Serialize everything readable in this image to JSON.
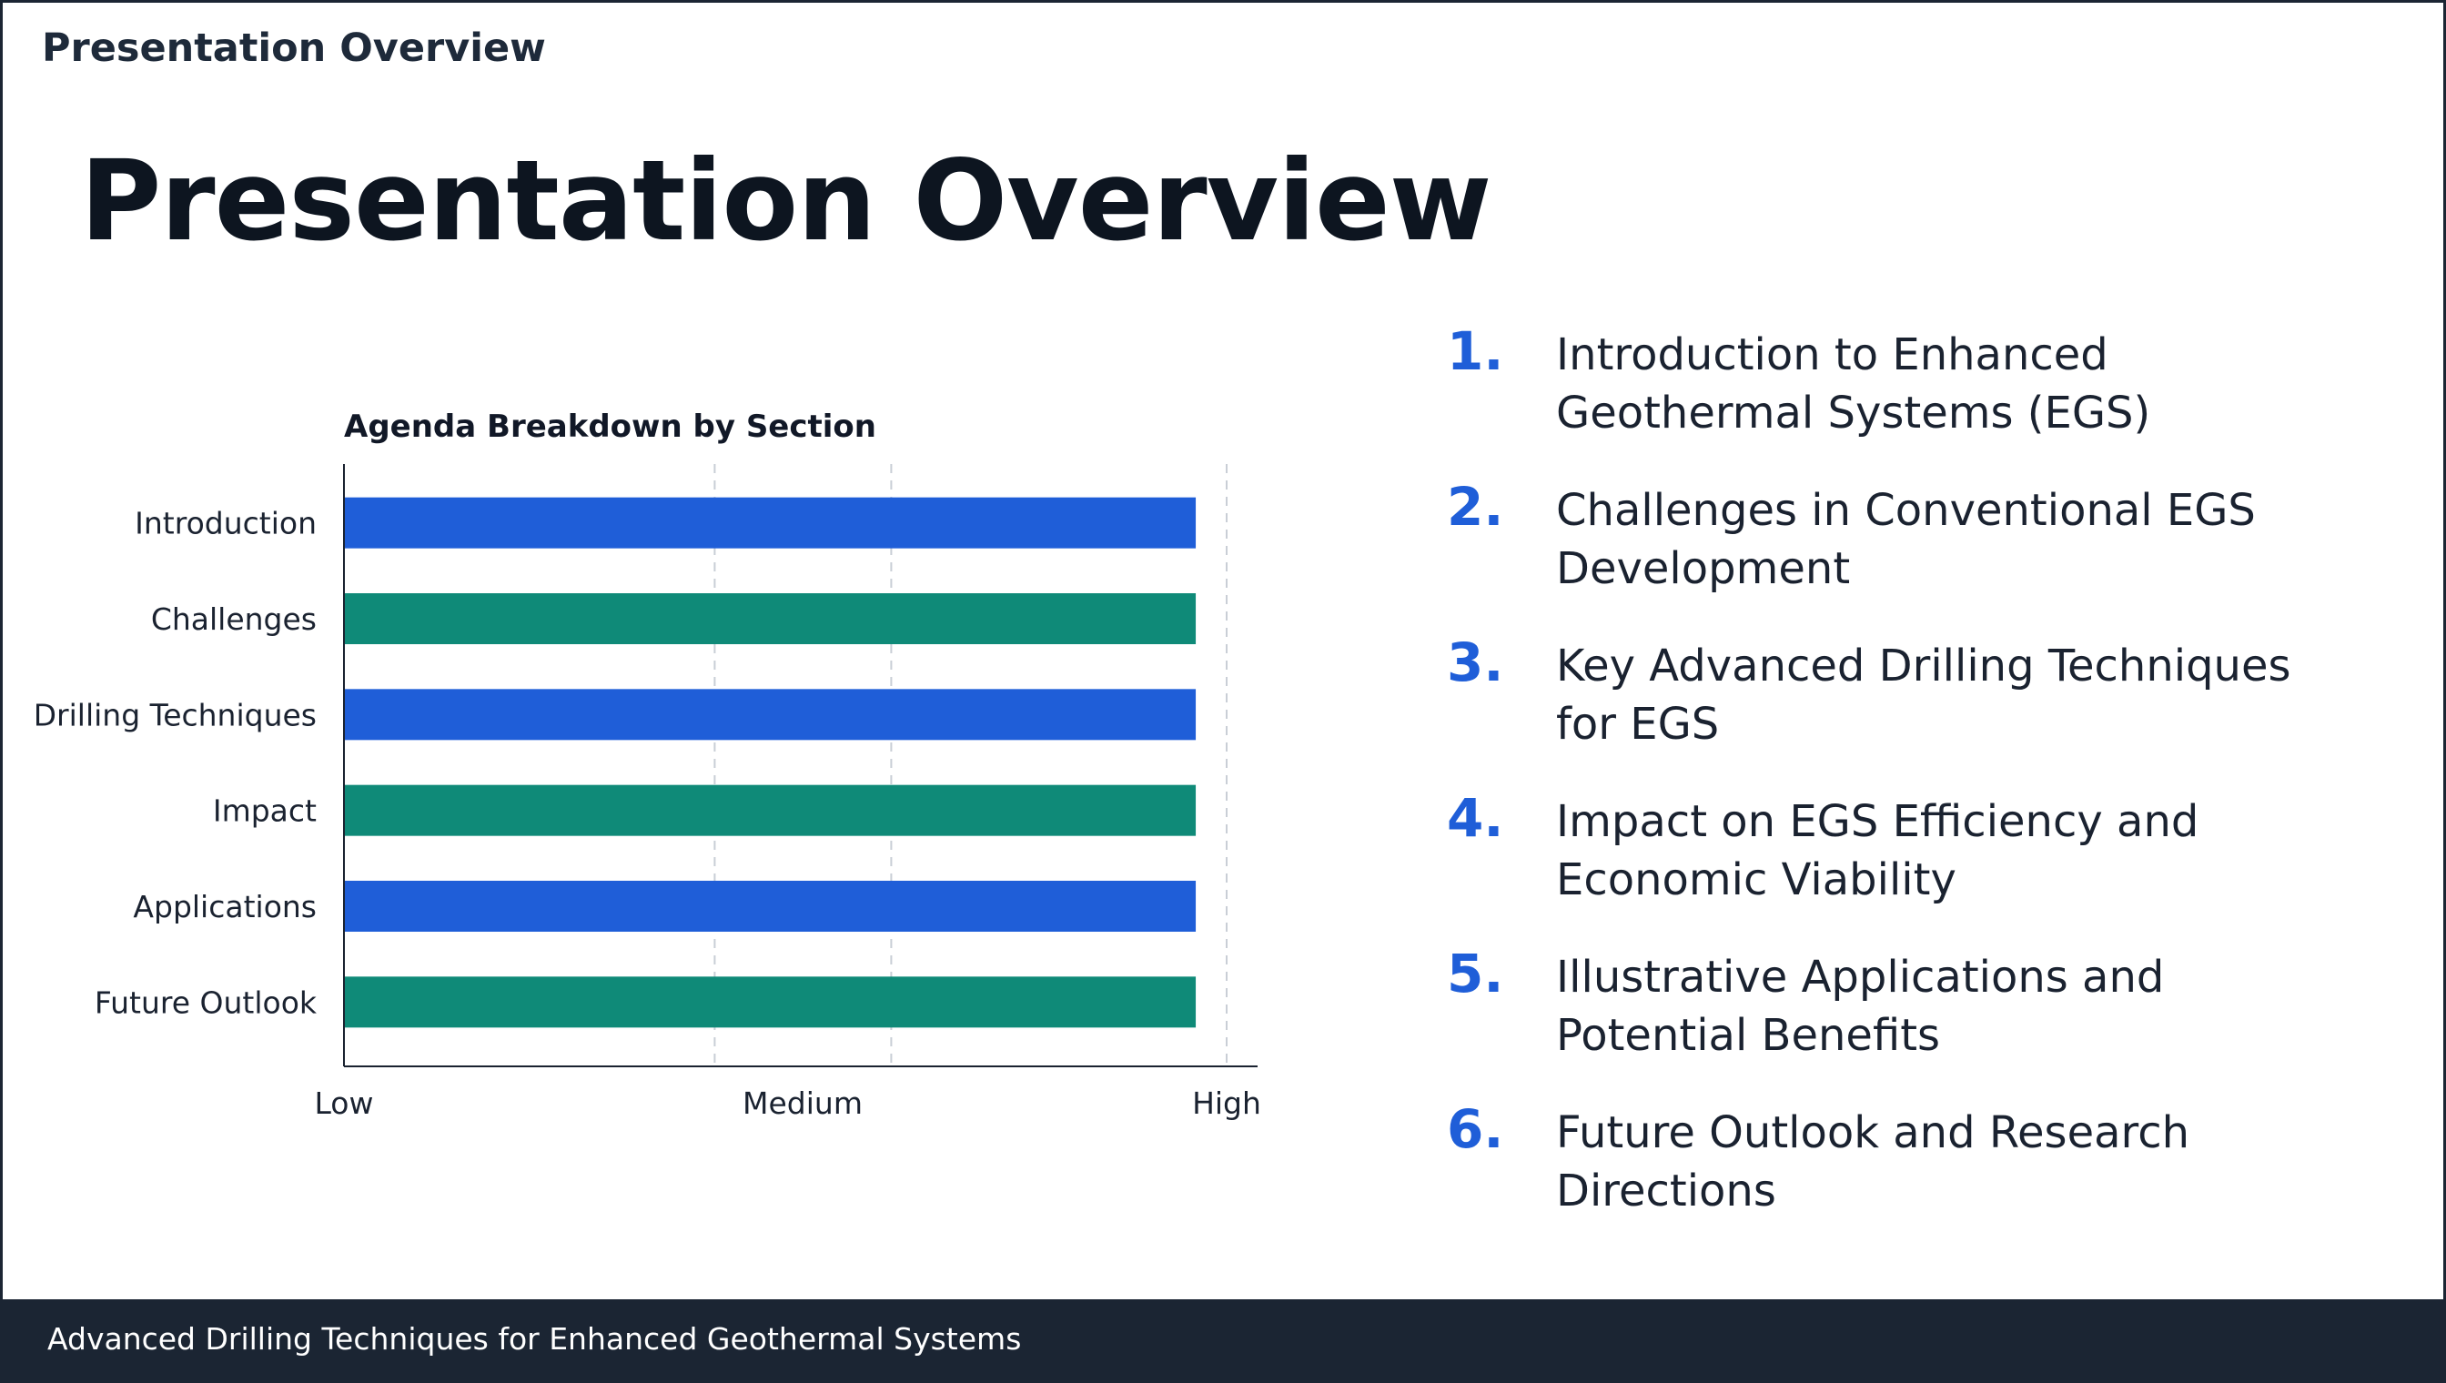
{
  "header": {
    "label": "Presentation Overview"
  },
  "slide": {
    "title": "Presentation Overview"
  },
  "chart_data": {
    "type": "bar",
    "orientation": "horizontal",
    "title": "Agenda Breakdown by Section",
    "categories": [
      "Introduction",
      "Challenges",
      "Drilling Techniques",
      "Impact",
      "Applications",
      "Future Outlook"
    ],
    "values": [
      0.965,
      0.965,
      0.965,
      0.965,
      0.965,
      0.965
    ],
    "xlim": [
      0,
      1
    ],
    "x_ticks": [
      {
        "value": 0,
        "label": "Low"
      },
      {
        "value": 0.5,
        "label": "Medium"
      },
      {
        "value": 1,
        "label": "High"
      }
    ],
    "gridlines_at": [
      0.42,
      0.62,
      1
    ],
    "grid": true,
    "colors": [
      "#1f5ed8",
      "#0f8a78",
      "#1f5ed8",
      "#0f8a78",
      "#1f5ed8",
      "#0f8a78"
    ]
  },
  "agenda": {
    "items": [
      {
        "num": "1.",
        "text": "Introduction to Enhanced Geothermal Systems (EGS)"
      },
      {
        "num": "2.",
        "text": "Challenges in Conventional EGS Development"
      },
      {
        "num": "3.",
        "text": "Key Advanced Drilling Techniques for EGS"
      },
      {
        "num": "4.",
        "text": "Impact on EGS Efficiency and Economic Viability"
      },
      {
        "num": "5.",
        "text": "Illustrative Applications and Potential Benefits"
      },
      {
        "num": "6.",
        "text": "Future Outlook and Research Directions"
      }
    ]
  },
  "footer": {
    "text": "Advanced Drilling Techniques for Enhanced Geothermal Systems"
  }
}
